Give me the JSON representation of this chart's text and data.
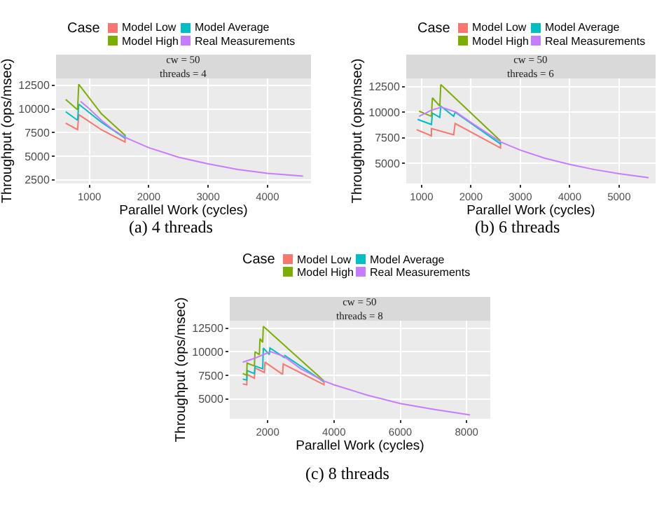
{
  "chart_data": [
    {
      "type": "line",
      "title": "cw = 50\nthreads = 4",
      "xlabel": "Parallel Work (cycles)",
      "ylabel": "Throughput (ops/msec)",
      "legend_title": "Case",
      "annotations": [
        "(a) 4 threads"
      ],
      "legend": "top",
      "grid": true,
      "line_style": "solid",
      "marker": "none",
      "xlim": [
        437,
        4734
      ],
      "xticks": [
        1000,
        2000,
        3000,
        4000
      ],
      "ylim": [
        2120,
        13220
      ],
      "yticks": [
        2500,
        5000,
        7500,
        10000,
        12500
      ],
      "series": [
        {
          "name": "Model Low",
          "color": "#f8766d",
          "x": [
            600,
            800,
            820,
            1200,
            1600,
            1600
          ],
          "values": [
            8500,
            7800,
            9400,
            7800,
            6500,
            7100
          ]
        },
        {
          "name": "Model Average",
          "color": "#00bfc4",
          "x": [
            600,
            800,
            820,
            1200,
            1600,
            1600
          ],
          "values": [
            9700,
            8800,
            10500,
            8600,
            6900,
            7300
          ]
        },
        {
          "name": "Model High",
          "color": "#7cae00",
          "x": [
            600,
            800,
            820,
            1200,
            1600
          ],
          "values": [
            11000,
            9900,
            12600,
            9500,
            7200
          ]
        },
        {
          "name": "Real Measurements",
          "color": "#c77cff",
          "x": [
            850,
            1000,
            1200,
            1400,
            1600,
            2000,
            2500,
            3000,
            3500,
            4000,
            4600
          ],
          "values": [
            10800,
            10000,
            8800,
            7800,
            7000,
            5900,
            4900,
            4200,
            3600,
            3200,
            2900
          ]
        }
      ]
    },
    {
      "type": "line",
      "title": "cw = 50\nthreads = 6",
      "xlabel": "Parallel Work (cycles)",
      "ylabel": "Throughput (ops/msec)",
      "legend_title": "Case",
      "annotations": [
        "(b) 6 threads"
      ],
      "legend": "top",
      "grid": true,
      "line_style": "solid",
      "marker": "none",
      "xlim": [
        690,
        5740
      ],
      "xticks": [
        1000,
        2000,
        3000,
        4000,
        5000
      ],
      "ylim": [
        3040,
        13300
      ],
      "yticks": [
        5000,
        7500,
        10000,
        12500
      ],
      "series": [
        {
          "name": "Model Low",
          "color": "#f8766d",
          "x": [
            900,
            1200,
            1200,
            1650,
            1680,
            2600,
            2600
          ],
          "values": [
            8300,
            7700,
            8400,
            7800,
            8900,
            6500,
            6900
          ]
        },
        {
          "name": "Model Average",
          "color": "#00bfc4",
          "x": [
            920,
            1200,
            1220,
            1370,
            1390,
            1650,
            1680,
            2600,
            2600
          ],
          "values": [
            9300,
            8800,
            9900,
            9500,
            10600,
            9600,
            10000,
            6900,
            7100
          ]
        },
        {
          "name": "Model High",
          "color": "#7cae00",
          "x": [
            950,
            1200,
            1220,
            1370,
            1390,
            2600
          ],
          "values": [
            10100,
            9600,
            11400,
            10600,
            12700,
            7200
          ]
        },
        {
          "name": "Real Measurements",
          "color": "#c77cff",
          "x": [
            950,
            1200,
            1400,
            1700,
            2000,
            2600,
            3000,
            3500,
            4000,
            4500,
            5000,
            5600
          ],
          "values": [
            9600,
            10200,
            10500,
            10000,
            9000,
            7100,
            6300,
            5500,
            4900,
            4400,
            4000,
            3600
          ]
        }
      ]
    },
    {
      "type": "line",
      "title": "cw = 50\nthreads = 8",
      "xlabel": "Parallel Work (cycles)",
      "ylabel": "Throughput (ops/msec)",
      "legend_title": "Case",
      "annotations": [
        "(c) 8 threads"
      ],
      "legend": "top",
      "grid": true,
      "line_style": "solid",
      "marker": "none",
      "xlim": [
        857,
        8714
      ],
      "xticks": [
        2000,
        4000,
        6000,
        8000
      ],
      "ylim": [
        2890,
        13300
      ],
      "yticks": [
        5000,
        7500,
        10000,
        12500
      ],
      "series": [
        {
          "name": "Model Low",
          "color": "#f8766d",
          "x": [
            1250,
            1370,
            1380,
            1600,
            1620,
            1900,
            1920,
            2450,
            2470,
            3700,
            3700
          ],
          "values": [
            6600,
            6500,
            7600,
            7200,
            8300,
            7800,
            8900,
            7600,
            8700,
            6500,
            6800
          ]
        },
        {
          "name": "Model Average",
          "color": "#00bfc4",
          "x": [
            1250,
            1370,
            1380,
            1600,
            1620,
            1850,
            1870,
            2050,
            2070,
            2500,
            2520,
            3700
          ],
          "values": [
            7100,
            7000,
            8000,
            7700,
            8500,
            8200,
            10400,
            9700,
            10400,
            9400,
            9600,
            6800
          ]
        },
        {
          "name": "Model High",
          "color": "#7cae00",
          "x": [
            1250,
            1370,
            1380,
            1600,
            1620,
            1750,
            1770,
            1850,
            1870,
            3700
          ],
          "values": [
            7700,
            7500,
            8800,
            8500,
            10000,
            9700,
            11400,
            11000,
            12700,
            6900
          ]
        },
        {
          "name": "Real Measurements",
          "color": "#c77cff",
          "x": [
            1250,
            1600,
            2000,
            2100,
            2500,
            3000,
            3700,
            4000,
            5000,
            6000,
            7000,
            8100
          ],
          "values": [
            8900,
            9300,
            9900,
            10000,
            9500,
            8200,
            6900,
            6500,
            5400,
            4500,
            3900,
            3300
          ]
        }
      ]
    }
  ]
}
